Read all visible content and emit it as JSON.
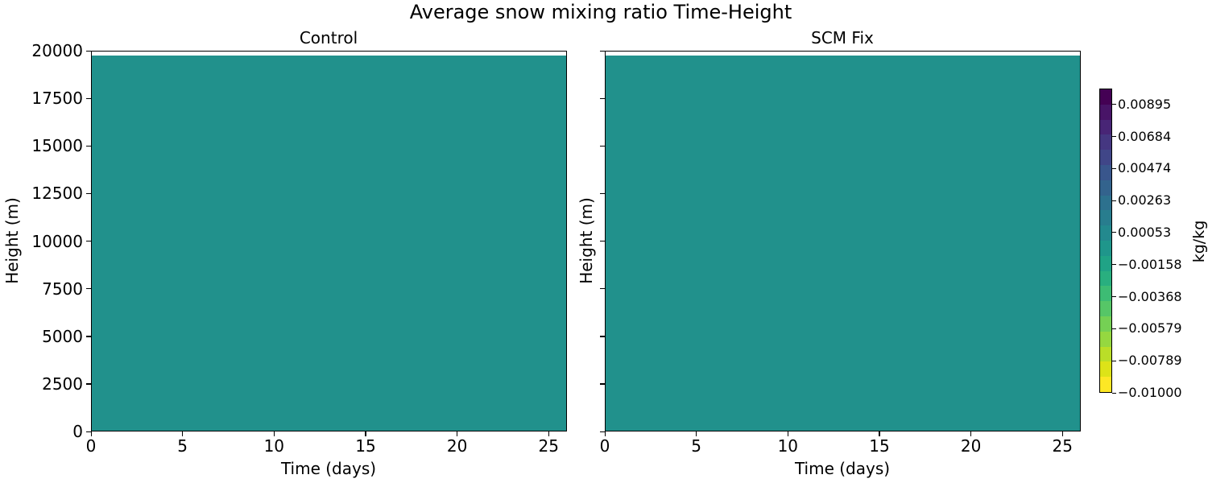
{
  "chart_data": {
    "type": "heatmap",
    "title": "Average snow mixing ratio Time-Height",
    "panels": [
      {
        "title": "Control",
        "xlabel": "Time (days)",
        "ylabel": "Height (m)",
        "xlim": [
          0,
          26
        ],
        "ylim": [
          0,
          20000
        ],
        "xticks": [
          0,
          5,
          10,
          15,
          20,
          25
        ],
        "yticks": [
          0,
          2500,
          5000,
          7500,
          10000,
          12500,
          15000,
          17500,
          20000
        ],
        "data_top": 19800,
        "field_value": 0.0,
        "fill_color": "#21918c"
      },
      {
        "title": "SCM Fix",
        "xlabel": "Time (days)",
        "ylabel": "Height (m)",
        "xlim": [
          0,
          26
        ],
        "ylim": [
          0,
          20000
        ],
        "xticks": [
          0,
          5,
          10,
          15,
          20,
          25
        ],
        "yticks": [
          0,
          2500,
          5000,
          7500,
          10000,
          12500,
          15000,
          17500,
          20000
        ],
        "data_top": 19800,
        "field_value": 0.0,
        "fill_color": "#21918c"
      }
    ],
    "colorbar": {
      "label": "kg/kg",
      "colormap": "viridis",
      "range": [
        -0.01,
        0.01
      ],
      "levels": 20,
      "ticks": [
        -0.01,
        -0.00789,
        -0.00579,
        -0.00368,
        -0.00158,
        0.00053,
        0.00263,
        0.00474,
        0.00684,
        0.00895
      ],
      "tick_labels": [
        "−0.01000",
        "−0.00789",
        "−0.00579",
        "−0.00368",
        "−0.00158",
        "0.00053",
        "0.00263",
        "0.00474",
        "0.00684",
        "0.00895"
      ]
    },
    "legend": null,
    "grid": false
  },
  "labels": {
    "suptitle": "Average snow mixing ratio Time-Height",
    "left_title": "Control",
    "right_title": "SCM Fix",
    "xlabel": "Time (days)",
    "ylabel": "Height (m)",
    "cbar_label": "kg/kg"
  },
  "colors": {
    "field": "#21918c",
    "viridis20": [
      "#fde725",
      "#dde318",
      "#bade28",
      "#95d840",
      "#75d054",
      "#56c667",
      "#3dbc74",
      "#29af7f",
      "#20a386",
      "#1f968b",
      "#23898e",
      "#287d8e",
      "#2d718e",
      "#33638d",
      "#39568c",
      "#404688",
      "#453781",
      "#482576",
      "#481467",
      "#440154"
    ]
  }
}
